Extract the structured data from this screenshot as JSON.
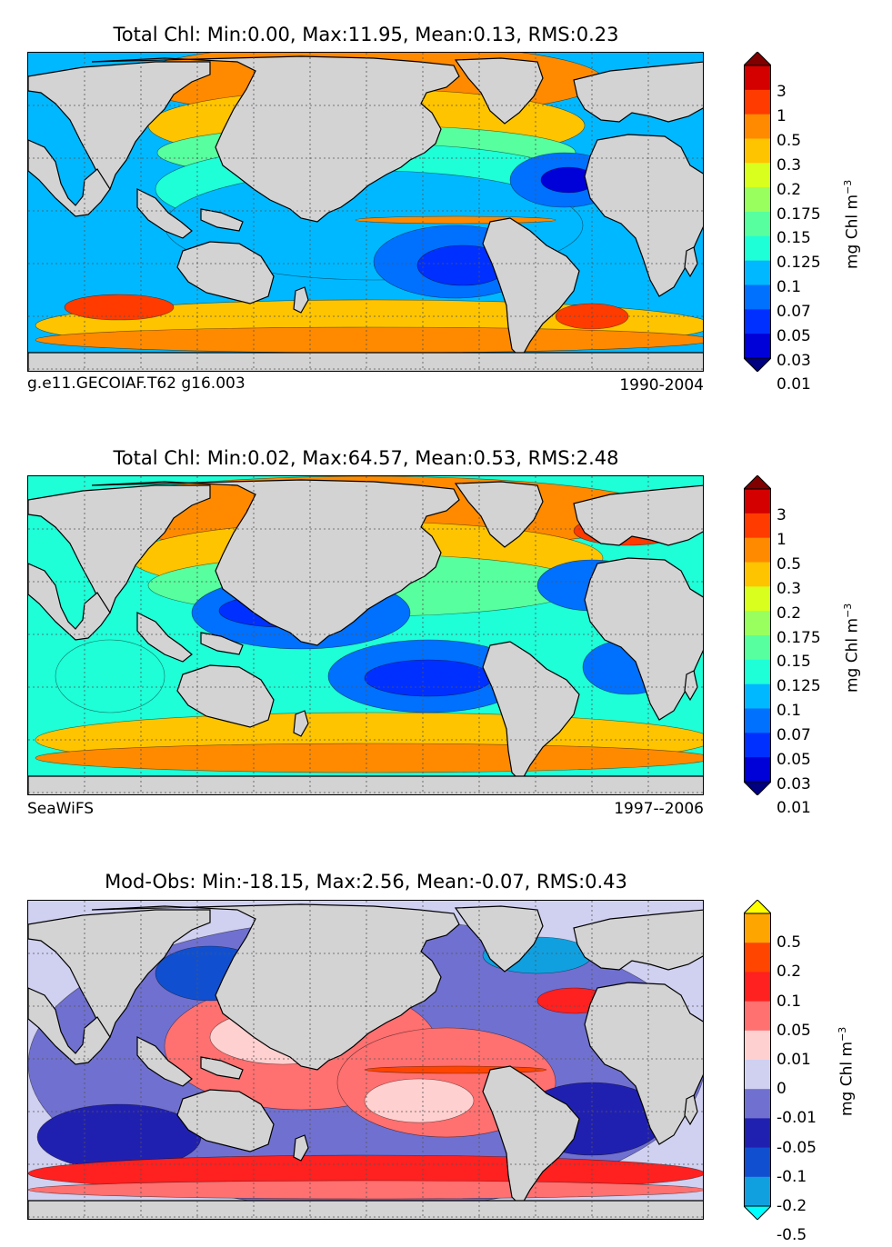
{
  "chart_data": [
    {
      "type": "heatmap",
      "title": "Total Chl: Min:0.00, Max:11.95, Mean:0.13, RMS:0.23",
      "left_caption": "g.e11.GECOIAF.T62 g16.003",
      "right_caption": "1990-2004",
      "colorbar_unit": "mg Chl m",
      "colorbar_unit_exp": "−3",
      "colorbar_labels": [
        "3",
        "1",
        "0.5",
        "0.3",
        "0.2",
        "0.175",
        "0.15",
        "0.125",
        "0.1",
        "0.07",
        "0.05",
        "0.03",
        "0.01"
      ],
      "colorbar_colors": [
        "#800000",
        "#d40000",
        "#ff3b00",
        "#ff8a00",
        "#ffc400",
        "#d8ff1e",
        "#98ff5e",
        "#58ff9e",
        "#1effd8",
        "#00b8ff",
        "#0070ff",
        "#0030ff",
        "#0000d8",
        "#000080"
      ]
    },
    {
      "type": "heatmap",
      "title": "Total Chl: Min:0.02, Max:64.57, Mean:0.53, RMS:2.48",
      "left_caption": "SeaWiFS",
      "right_caption": "1997--2006",
      "colorbar_unit": "mg Chl m",
      "colorbar_unit_exp": "−3",
      "colorbar_labels": [
        "3",
        "1",
        "0.5",
        "0.3",
        "0.2",
        "0.175",
        "0.15",
        "0.125",
        "0.1",
        "0.07",
        "0.05",
        "0.03",
        "0.01"
      ],
      "colorbar_colors": [
        "#800000",
        "#d40000",
        "#ff3b00",
        "#ff8a00",
        "#ffc400",
        "#d8ff1e",
        "#98ff5e",
        "#58ff9e",
        "#1effd8",
        "#00b8ff",
        "#0070ff",
        "#0030ff",
        "#0000d8",
        "#000080"
      ]
    },
    {
      "type": "heatmap",
      "title": "Mod-Obs: Min:-18.15, Max:2.56, Mean:-0.07, RMS:0.43",
      "left_caption": "",
      "right_caption": "",
      "colorbar_unit": "mg Chl m",
      "colorbar_unit_exp": "−3",
      "colorbar_labels": [
        "0.5",
        "0.2",
        "0.1",
        "0.05",
        "0.01",
        "0",
        "-0.01",
        "-0.05",
        "-0.1",
        "-0.2",
        "-0.5"
      ],
      "colorbar_colors": [
        "#ffff00",
        "#ffa500",
        "#ff4500",
        "#ff2020",
        "#ff7070",
        "#ffd0d0",
        "#d0d0f0",
        "#7070d0",
        "#2020b0",
        "#1050d0",
        "#10a0e0",
        "#00ffff"
      ]
    }
  ],
  "map_colors": {
    "land": "#d3d3d3",
    "ocean_bg": "#00b8ff"
  }
}
